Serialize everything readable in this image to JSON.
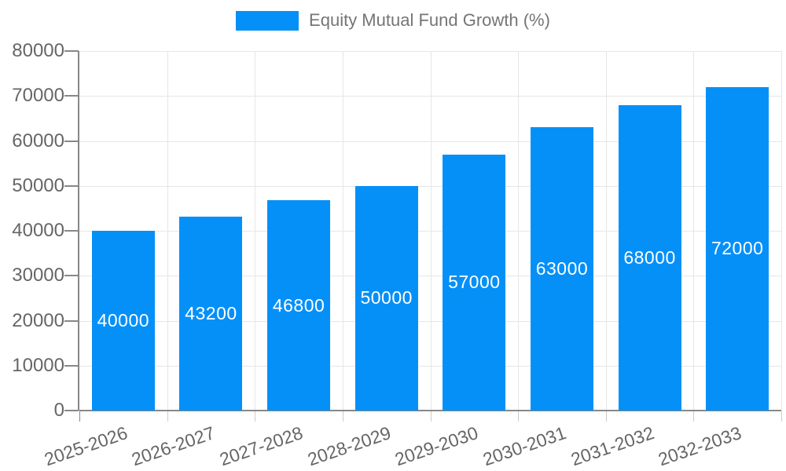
{
  "chart_data": {
    "type": "bar",
    "title": "",
    "legend_label": "Equity Mutual Fund Growth (%)",
    "legend_position": "top",
    "categories": [
      "2025-2026",
      "2026-2027",
      "2027-2028",
      "2028-2029",
      "2029-2030",
      "2030-2031",
      "2031-2032",
      "2032-2033"
    ],
    "values": [
      40000,
      43200,
      46800,
      50000,
      57000,
      63000,
      68000,
      72000
    ],
    "xlabel": "",
    "ylabel": "",
    "ylim": [
      0,
      80000
    ],
    "yticks": [
      0,
      10000,
      20000,
      30000,
      40000,
      50000,
      60000,
      70000,
      80000
    ],
    "grid": true,
    "x_label_rotation_deg": -19,
    "colors": {
      "bar": "#0590f8",
      "bar_value_text": "#ffffff",
      "axis_text": "#666666",
      "legend_text": "#757575",
      "gridline": "#e6e6e6",
      "axis_line": "#888888",
      "minor_tick": "#cccccc",
      "background": "#ffffff"
    }
  }
}
